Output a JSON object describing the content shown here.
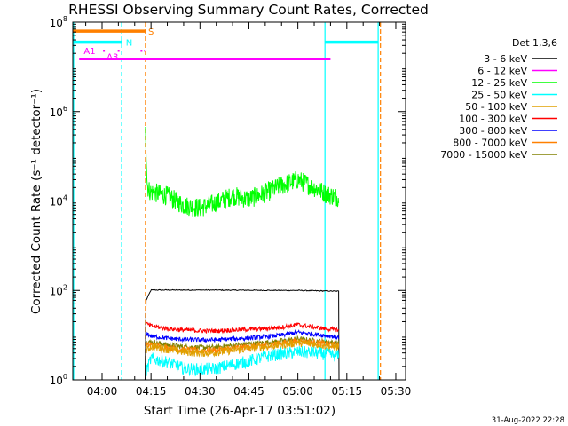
{
  "chart_data": {
    "type": "line",
    "title": "RHESSI Observing Summary Count Rates, Corrected",
    "xlabel": "Start Time (26-Apr-17 03:51:02)",
    "ylabel": "Corrected Count Rate (s⁻¹ detector⁻¹)",
    "yscale": "log",
    "ylim": [
      1,
      100000000
    ],
    "y_ticks": [
      {
        "value": 1,
        "base": "10",
        "exp": "0"
      },
      {
        "value": 100,
        "base": "10",
        "exp": "2"
      },
      {
        "value": 10000,
        "base": "10",
        "exp": "4"
      },
      {
        "value": 1000000,
        "base": "10",
        "exp": "6"
      },
      {
        "value": 100000000,
        "base": "10",
        "exp": "8"
      }
    ],
    "x_ticks": [
      "04:00",
      "04:15",
      "04:30",
      "04:45",
      "05:00",
      "05:15",
      "05:30"
    ],
    "x_tick_minutes": [
      240,
      255,
      270,
      285,
      300,
      315,
      330
    ],
    "xlim_minutes": [
      231.03,
      333
    ],
    "legend_title": "Det 1,3,6",
    "legend_position": "right",
    "series": [
      {
        "name": "3 - 6 keV",
        "color": "#000000",
        "x": [
          252.6,
          253.2,
          253.5,
          255,
          270,
          285,
          300,
          312.5,
          312.6
        ],
        "y": [
          1.0,
          1.0,
          60,
          102,
          102,
          101,
          100,
          96,
          1.0
        ]
      },
      {
        "name": "6 - 12 keV",
        "color": "#ff00ff",
        "x": [
          233,
          310
        ],
        "y": [
          15000000,
          15000000
        ]
      },
      {
        "name": "12 - 25 keV",
        "color": "#00ff00",
        "x": [
          253.3,
          253.5,
          253.8,
          254.2,
          255,
          260,
          265,
          270,
          275,
          280,
          285,
          290,
          295,
          300,
          305,
          309,
          312.5
        ],
        "y": [
          600000,
          150000,
          25000,
          18000,
          16000,
          13000,
          8000,
          7000,
          9000,
          13000,
          11000,
          15000,
          22000,
          30000,
          20000,
          14000,
          12000
        ]
      },
      {
        "name": "25 - 50 keV",
        "color": "#00ffff",
        "x": [
          253.6,
          255,
          260,
          265,
          270,
          275,
          280,
          285,
          290,
          295,
          300,
          305,
          310,
          312.5
        ],
        "y": [
          1.6,
          3.0,
          2.5,
          1.8,
          1.7,
          1.8,
          2.2,
          2.6,
          3.3,
          3.8,
          4.2,
          4.0,
          3.6,
          3.4
        ]
      },
      {
        "name": "50 - 100 keV",
        "color": "#e0a000",
        "x": [
          253.6,
          255,
          260,
          265,
          270,
          275,
          280,
          285,
          290,
          295,
          300,
          305,
          310,
          312.5
        ],
        "y": [
          4.5,
          5.6,
          4.8,
          4.2,
          4.0,
          4.1,
          4.6,
          5.0,
          5.5,
          6.0,
          6.8,
          6.2,
          5.6,
          5.3
        ]
      },
      {
        "name": "100 - 300 keV",
        "color": "#ff0000",
        "x": [
          253.6,
          255,
          260,
          265,
          270,
          275,
          280,
          285,
          290,
          295,
          300,
          305,
          310,
          312.5
        ],
        "y": [
          18,
          16,
          14,
          13,
          12.5,
          12.5,
          13,
          13.5,
          14,
          15,
          17,
          15,
          13.5,
          13
        ]
      },
      {
        "name": "300 - 800 keV",
        "color": "#0000ff",
        "x": [
          253.6,
          255,
          260,
          265,
          270,
          275,
          280,
          285,
          290,
          295,
          300,
          305,
          310,
          312.5
        ],
        "y": [
          11,
          9.5,
          8.5,
          8.0,
          7.8,
          7.8,
          8.2,
          8.6,
          9.2,
          10,
          11.5,
          10.5,
          9.5,
          9.0
        ]
      },
      {
        "name": "800 - 7000 keV",
        "color": "#ff8000",
        "x": [
          253.6,
          255,
          260,
          265,
          270,
          275,
          280,
          285,
          290,
          295,
          300,
          305,
          310,
          312.5
        ],
        "y": [
          6.0,
          6.0,
          5.2,
          4.7,
          4.5,
          4.6,
          5.1,
          5.5,
          6.0,
          6.6,
          7.4,
          6.8,
          6.2,
          5.9
        ]
      },
      {
        "name": "7000 - 15000 keV",
        "color": "#808000",
        "x": [
          253.6,
          255,
          260,
          265,
          270,
          275,
          280,
          285,
          290,
          295,
          300,
          305,
          310,
          312.5
        ],
        "y": [
          7.0,
          7.0,
          6.0,
          5.5,
          5.3,
          5.4,
          5.9,
          6.3,
          6.8,
          7.4,
          8.2,
          7.5,
          6.9,
          6.6
        ]
      }
    ],
    "state_bars": [
      {
        "label": "S",
        "color": "#ff8000",
        "log_y": 7.8,
        "segments": [
          [
            231.03,
            253.2
          ]
        ],
        "label_x": 255
      },
      {
        "label": "N",
        "color": "#00ffff",
        "log_y": 7.55,
        "segments": [
          [
            231.03,
            246.0
          ],
          [
            308.3,
            324.6
          ]
        ],
        "label_x": 248.3
      },
      {
        "label": "A1",
        "color": "#ff00ff",
        "log_y": 7.36,
        "segments": [],
        "label_x": 236.2
      },
      {
        "label": "A3",
        "color": "#ff00ff",
        "log_y": 7.24,
        "segments": [],
        "label_x": 243.2
      }
    ],
    "attenuator_marks": [
      {
        "color": "#ff00ff",
        "log_y": 7.36,
        "segments": [
          [
            240.3,
            241.0
          ],
          [
            244.8,
            245.5
          ],
          [
            251.8,
            253.1
          ]
        ]
      }
    ],
    "vertical_lines": [
      {
        "x": 231.3,
        "color": "#00ffff",
        "style": "solid"
      },
      {
        "x": 246.0,
        "color": "#00ffff",
        "style": "dashed"
      },
      {
        "x": 253.3,
        "color": "#ff8000",
        "style": "dashed"
      },
      {
        "x": 308.3,
        "color": "#00ffff",
        "style": "solid"
      },
      {
        "x": 324.6,
        "color": "#00ffff",
        "style": "solid"
      },
      {
        "x": 325.3,
        "color": "#ff8000",
        "style": "dashed"
      }
    ],
    "timestamp": "31-Aug-2022 22:28"
  }
}
